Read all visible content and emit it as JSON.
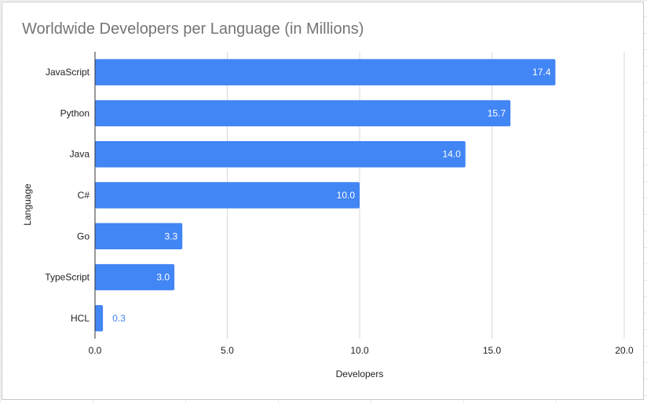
{
  "chart_data": {
    "type": "bar",
    "orientation": "horizontal",
    "title": "Worldwide Developers per Language (in Millions)",
    "xlabel": "Developers",
    "ylabel": "Language",
    "categories": [
      "JavaScript",
      "Python",
      "Java",
      "C#",
      "Go",
      "TypeScript",
      "HCL"
    ],
    "values": [
      17.4,
      15.7,
      14.0,
      10.0,
      3.3,
      3.0,
      0.3
    ],
    "value_labels": [
      "17.4",
      "15.7",
      "14.0",
      "10.0",
      "3.3",
      "3.0",
      "0.3"
    ],
    "xlim": [
      0,
      20
    ],
    "xticks": [
      "0.0",
      "5.0",
      "10.0",
      "15.0",
      "20.0"
    ],
    "grid": true,
    "legend": "none",
    "colors": {
      "bar": "#4285f4",
      "label_inside": "#ffffff",
      "label_outside": "#4285f4",
      "title": "#757575",
      "grid": "#d9d9d9",
      "axis": "#333333",
      "text": "#222222"
    }
  }
}
